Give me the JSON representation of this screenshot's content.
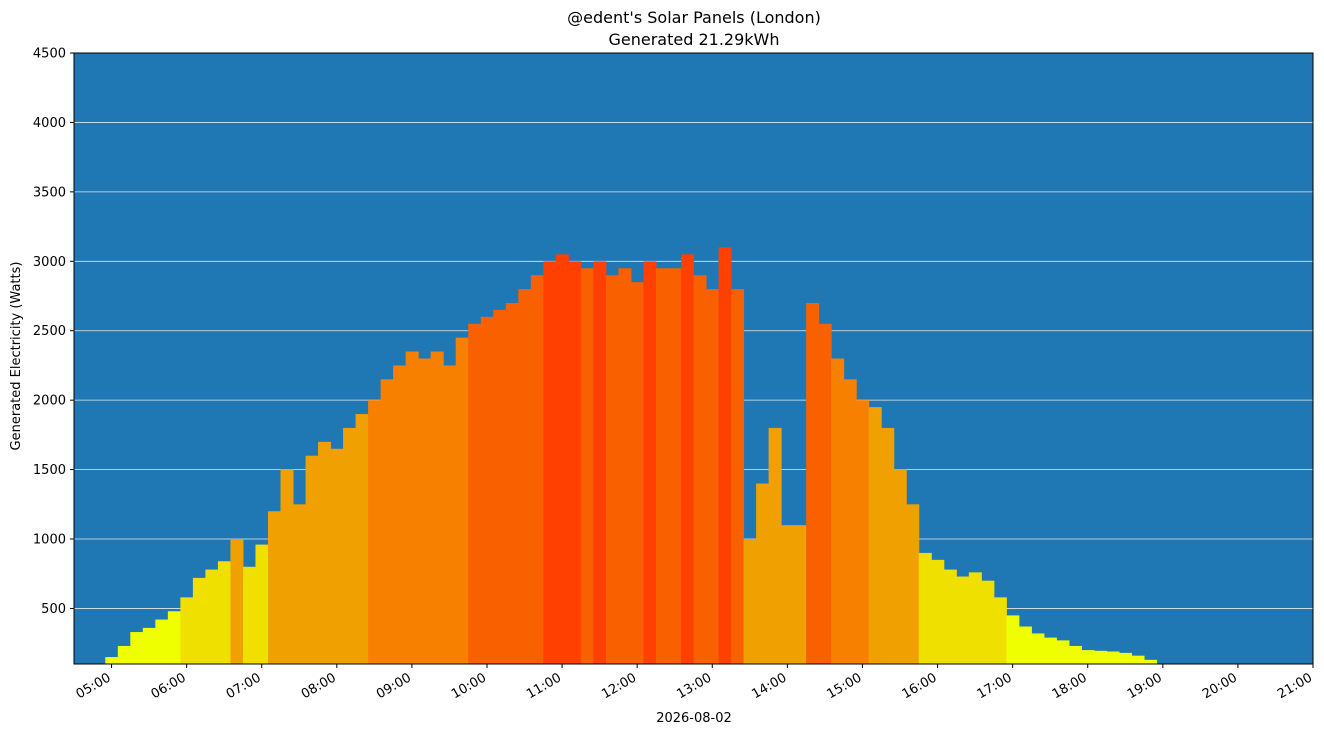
{
  "chart_data": {
    "type": "bar",
    "title": "@edent's Solar Panels (London)",
    "subtitle": "Generated 21.29kWh",
    "xlabel": "2026-08-02",
    "ylabel": "Generated Electricity (Watts)",
    "xlim": [
      "04:30",
      "21:00"
    ],
    "ylim": [
      100,
      4500
    ],
    "grid": "horizontal",
    "background": "#1f77b4",
    "yticks": [
      500,
      1000,
      1500,
      2000,
      2500,
      3000,
      3500,
      4000,
      4500
    ],
    "xticks": [
      "05:00",
      "06:00",
      "07:00",
      "08:00",
      "09:00",
      "10:00",
      "11:00",
      "12:00",
      "13:00",
      "14:00",
      "15:00",
      "16:00",
      "17:00",
      "18:00",
      "19:00",
      "20:00",
      "21:00"
    ],
    "bar_color_scale": [
      "#f0ff00",
      "#f0e000",
      "#f0a000",
      "#f88000",
      "#f86000",
      "#ff4000"
    ],
    "x": [
      "05:00",
      "05:10",
      "05:20",
      "05:30",
      "05:40",
      "05:50",
      "06:00",
      "06:10",
      "06:20",
      "06:30",
      "06:40",
      "06:50",
      "07:00",
      "07:10",
      "07:20",
      "07:30",
      "07:40",
      "07:50",
      "08:00",
      "08:10",
      "08:20",
      "08:30",
      "08:40",
      "08:50",
      "09:00",
      "09:10",
      "09:20",
      "09:30",
      "09:40",
      "09:50",
      "10:00",
      "10:10",
      "10:20",
      "10:30",
      "10:40",
      "10:50",
      "11:00",
      "11:10",
      "11:20",
      "11:30",
      "11:40",
      "11:50",
      "12:00",
      "12:10",
      "12:20",
      "12:30",
      "12:40",
      "12:50",
      "13:00",
      "13:10",
      "13:20",
      "13:30",
      "13:40",
      "13:50",
      "14:00",
      "14:10",
      "14:20",
      "14:30",
      "14:40",
      "14:50",
      "15:00",
      "15:10",
      "15:20",
      "15:30",
      "15:40",
      "15:50",
      "16:00",
      "16:10",
      "16:20",
      "16:30",
      "16:40",
      "16:50",
      "17:00",
      "17:10",
      "17:20",
      "17:30",
      "17:40",
      "17:50",
      "18:00",
      "18:10",
      "18:20",
      "18:30",
      "18:40",
      "18:50",
      "19:00"
    ],
    "values": [
      150,
      230,
      330,
      360,
      420,
      480,
      580,
      720,
      780,
      840,
      1000,
      800,
      960,
      1200,
      1500,
      1250,
      1600,
      1700,
      1650,
      1800,
      1900,
      2000,
      2150,
      2250,
      2350,
      2300,
      2350,
      2250,
      2450,
      2550,
      2600,
      2650,
      2700,
      2800,
      2900,
      3000,
      3050,
      3000,
      2950,
      3000,
      2900,
      2950,
      2850,
      3000,
      2950,
      2950,
      3050,
      2900,
      2800,
      3100,
      2800,
      1000,
      1400,
      1800,
      1100,
      1100,
      2700,
      2550,
      2300,
      2150,
      2000,
      1950,
      1800,
      1500,
      1250,
      900,
      850,
      780,
      730,
      760,
      700,
      580,
      450,
      370,
      320,
      290,
      270,
      230,
      200,
      195,
      190,
      180,
      160,
      130,
      100
    ]
  }
}
